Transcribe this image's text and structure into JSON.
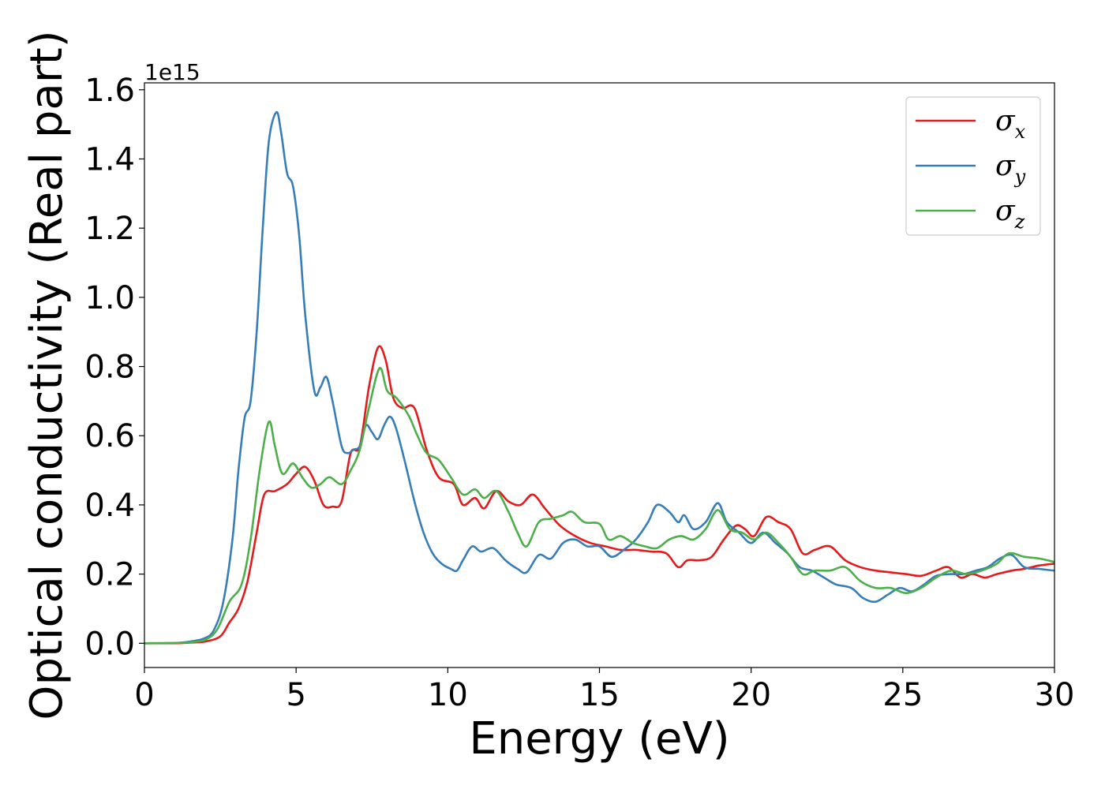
{
  "chart_data": {
    "type": "line",
    "title": "",
    "xlabel": "Energy (eV)",
    "ylabel": "Optical conductivity (Real part)",
    "y_offset_label": "1e15",
    "xlim": [
      0,
      30
    ],
    "ylim": [
      -0.07,
      1.62
    ],
    "x_ticks": [
      0,
      5,
      10,
      15,
      20,
      25,
      30
    ],
    "x_tick_labels": [
      "0",
      "5",
      "10",
      "15",
      "20",
      "25",
      "30"
    ],
    "y_ticks": [
      0.0,
      0.2,
      0.4,
      0.6,
      0.8,
      1.0,
      1.2,
      1.4,
      1.6
    ],
    "y_tick_labels": [
      "0.0",
      "0.2",
      "0.4",
      "0.6",
      "0.8",
      "1.0",
      "1.2",
      "1.4",
      "1.6"
    ],
    "grid": false,
    "legend_position": "top-right",
    "series": [
      {
        "name": "σx",
        "symbol": "σ",
        "subscript": "x",
        "color": "#e41a1c",
        "points": [
          [
            0,
            0
          ],
          [
            1,
            0
          ],
          [
            1.5,
            0.002
          ],
          [
            2,
            0.005
          ],
          [
            2.5,
            0.02
          ],
          [
            2.8,
            0.06
          ],
          [
            3.1,
            0.1
          ],
          [
            3.4,
            0.18
          ],
          [
            3.7,
            0.32
          ],
          [
            3.95,
            0.43
          ],
          [
            4.3,
            0.44
          ],
          [
            4.7,
            0.46
          ],
          [
            5,
            0.49
          ],
          [
            5.3,
            0.51
          ],
          [
            5.6,
            0.47
          ],
          [
            5.9,
            0.4
          ],
          [
            6.2,
            0.395
          ],
          [
            6.5,
            0.41
          ],
          [
            6.8,
            0.55
          ],
          [
            7.1,
            0.57
          ],
          [
            7.4,
            0.74
          ],
          [
            7.7,
            0.855
          ],
          [
            7.95,
            0.82
          ],
          [
            8.2,
            0.71
          ],
          [
            8.5,
            0.68
          ],
          [
            8.9,
            0.68
          ],
          [
            9.3,
            0.56
          ],
          [
            9.7,
            0.48
          ],
          [
            10.2,
            0.46
          ],
          [
            10.5,
            0.4
          ],
          [
            10.9,
            0.42
          ],
          [
            11.2,
            0.39
          ],
          [
            11.6,
            0.44
          ],
          [
            12,
            0.41
          ],
          [
            12.4,
            0.4
          ],
          [
            12.8,
            0.43
          ],
          [
            13.2,
            0.39
          ],
          [
            13.7,
            0.34
          ],
          [
            14.2,
            0.31
          ],
          [
            14.7,
            0.29
          ],
          [
            15.2,
            0.28
          ],
          [
            15.7,
            0.27
          ],
          [
            16.2,
            0.27
          ],
          [
            16.7,
            0.265
          ],
          [
            17.2,
            0.26
          ],
          [
            17.6,
            0.22
          ],
          [
            17.9,
            0.24
          ],
          [
            18.3,
            0.24
          ],
          [
            18.7,
            0.25
          ],
          [
            19.1,
            0.3
          ],
          [
            19.5,
            0.34
          ],
          [
            19.8,
            0.33
          ],
          [
            20.1,
            0.31
          ],
          [
            20.5,
            0.365
          ],
          [
            20.9,
            0.35
          ],
          [
            21.3,
            0.33
          ],
          [
            21.7,
            0.26
          ],
          [
            22.1,
            0.27
          ],
          [
            22.6,
            0.28
          ],
          [
            23.1,
            0.24
          ],
          [
            23.6,
            0.22
          ],
          [
            24.1,
            0.21
          ],
          [
            24.6,
            0.205
          ],
          [
            25.1,
            0.2
          ],
          [
            25.6,
            0.195
          ],
          [
            26.1,
            0.21
          ],
          [
            26.5,
            0.22
          ],
          [
            26.9,
            0.19
          ],
          [
            27.3,
            0.2
          ],
          [
            27.7,
            0.19
          ],
          [
            28.1,
            0.2
          ],
          [
            28.6,
            0.21
          ],
          [
            29,
            0.215
          ],
          [
            29.5,
            0.225
          ],
          [
            30,
            0.23
          ]
        ]
      },
      {
        "name": "σy",
        "symbol": "σ",
        "subscript": "y",
        "color": "#377eb8",
        "points": [
          [
            0,
            0
          ],
          [
            1,
            0.001
          ],
          [
            1.5,
            0.005
          ],
          [
            2,
            0.015
          ],
          [
            2.3,
            0.04
          ],
          [
            2.6,
            0.12
          ],
          [
            2.9,
            0.3
          ],
          [
            3.1,
            0.5
          ],
          [
            3.3,
            0.65
          ],
          [
            3.5,
            0.7
          ],
          [
            3.7,
            0.9
          ],
          [
            3.9,
            1.2
          ],
          [
            4.1,
            1.45
          ],
          [
            4.35,
            1.535
          ],
          [
            4.5,
            1.48
          ],
          [
            4.7,
            1.36
          ],
          [
            4.9,
            1.32
          ],
          [
            5.1,
            1.18
          ],
          [
            5.3,
            0.95
          ],
          [
            5.6,
            0.73
          ],
          [
            5.8,
            0.74
          ],
          [
            6,
            0.77
          ],
          [
            6.2,
            0.7
          ],
          [
            6.5,
            0.57
          ],
          [
            6.7,
            0.55
          ],
          [
            6.9,
            0.56
          ],
          [
            7.1,
            0.57
          ],
          [
            7.3,
            0.63
          ],
          [
            7.5,
            0.61
          ],
          [
            7.7,
            0.59
          ],
          [
            7.9,
            0.63
          ],
          [
            8.1,
            0.655
          ],
          [
            8.3,
            0.62
          ],
          [
            8.6,
            0.52
          ],
          [
            8.9,
            0.41
          ],
          [
            9.2,
            0.32
          ],
          [
            9.5,
            0.26
          ],
          [
            9.8,
            0.23
          ],
          [
            10.1,
            0.215
          ],
          [
            10.3,
            0.21
          ],
          [
            10.5,
            0.24
          ],
          [
            10.8,
            0.28
          ],
          [
            11.1,
            0.265
          ],
          [
            11.5,
            0.275
          ],
          [
            11.9,
            0.24
          ],
          [
            12.3,
            0.215
          ],
          [
            12.6,
            0.205
          ],
          [
            13,
            0.255
          ],
          [
            13.4,
            0.245
          ],
          [
            13.8,
            0.29
          ],
          [
            14.2,
            0.3
          ],
          [
            14.6,
            0.28
          ],
          [
            15,
            0.28
          ],
          [
            15.4,
            0.25
          ],
          [
            15.8,
            0.27
          ],
          [
            16.2,
            0.3
          ],
          [
            16.6,
            0.35
          ],
          [
            16.9,
            0.4
          ],
          [
            17.3,
            0.38
          ],
          [
            17.6,
            0.35
          ],
          [
            17.8,
            0.37
          ],
          [
            18.1,
            0.33
          ],
          [
            18.5,
            0.35
          ],
          [
            18.9,
            0.405
          ],
          [
            19.2,
            0.35
          ],
          [
            19.6,
            0.32
          ],
          [
            20,
            0.29
          ],
          [
            20.4,
            0.32
          ],
          [
            20.8,
            0.29
          ],
          [
            21.2,
            0.26
          ],
          [
            21.6,
            0.22
          ],
          [
            22,
            0.21
          ],
          [
            22.4,
            0.19
          ],
          [
            22.8,
            0.17
          ],
          [
            23.3,
            0.16
          ],
          [
            23.7,
            0.13
          ],
          [
            24.1,
            0.12
          ],
          [
            24.5,
            0.14
          ],
          [
            24.9,
            0.16
          ],
          [
            25.3,
            0.15
          ],
          [
            25.7,
            0.17
          ],
          [
            26.1,
            0.195
          ],
          [
            26.6,
            0.2
          ],
          [
            27,
            0.2
          ],
          [
            27.4,
            0.21
          ],
          [
            27.8,
            0.22
          ],
          [
            28.2,
            0.245
          ],
          [
            28.6,
            0.255
          ],
          [
            29,
            0.22
          ],
          [
            29.5,
            0.215
          ],
          [
            30,
            0.21
          ]
        ]
      },
      {
        "name": "σz",
        "symbol": "σ",
        "subscript": "z",
        "color": "#4daf4a",
        "points": [
          [
            0,
            0
          ],
          [
            1,
            0.001
          ],
          [
            1.5,
            0.003
          ],
          [
            2,
            0.01
          ],
          [
            2.4,
            0.04
          ],
          [
            2.8,
            0.12
          ],
          [
            3.2,
            0.17
          ],
          [
            3.5,
            0.3
          ],
          [
            3.8,
            0.5
          ],
          [
            4.1,
            0.64
          ],
          [
            4.3,
            0.57
          ],
          [
            4.55,
            0.49
          ],
          [
            4.9,
            0.52
          ],
          [
            5.2,
            0.48
          ],
          [
            5.5,
            0.45
          ],
          [
            5.8,
            0.46
          ],
          [
            6.1,
            0.48
          ],
          [
            6.5,
            0.46
          ],
          [
            6.8,
            0.5
          ],
          [
            7.1,
            0.56
          ],
          [
            7.4,
            0.68
          ],
          [
            7.75,
            0.795
          ],
          [
            8,
            0.73
          ],
          [
            8.3,
            0.71
          ],
          [
            8.7,
            0.66
          ],
          [
            9,
            0.6
          ],
          [
            9.3,
            0.55
          ],
          [
            9.7,
            0.53
          ],
          [
            10.1,
            0.48
          ],
          [
            10.5,
            0.43
          ],
          [
            10.9,
            0.445
          ],
          [
            11.2,
            0.42
          ],
          [
            11.6,
            0.44
          ],
          [
            12,
            0.38
          ],
          [
            12.3,
            0.32
          ],
          [
            12.6,
            0.28
          ],
          [
            13,
            0.35
          ],
          [
            13.4,
            0.36
          ],
          [
            13.8,
            0.37
          ],
          [
            14.1,
            0.38
          ],
          [
            14.5,
            0.35
          ],
          [
            15,
            0.345
          ],
          [
            15.3,
            0.3
          ],
          [
            15.7,
            0.31
          ],
          [
            16.1,
            0.29
          ],
          [
            16.5,
            0.28
          ],
          [
            16.9,
            0.275
          ],
          [
            17.3,
            0.3
          ],
          [
            17.7,
            0.31
          ],
          [
            18.1,
            0.3
          ],
          [
            18.5,
            0.33
          ],
          [
            18.9,
            0.385
          ],
          [
            19.3,
            0.33
          ],
          [
            19.7,
            0.32
          ],
          [
            20.1,
            0.3
          ],
          [
            20.5,
            0.32
          ],
          [
            20.9,
            0.29
          ],
          [
            21.3,
            0.25
          ],
          [
            21.7,
            0.2
          ],
          [
            22.1,
            0.21
          ],
          [
            22.6,
            0.21
          ],
          [
            23.1,
            0.22
          ],
          [
            23.6,
            0.18
          ],
          [
            24.1,
            0.16
          ],
          [
            24.6,
            0.16
          ],
          [
            25.1,
            0.145
          ],
          [
            25.6,
            0.16
          ],
          [
            26.1,
            0.19
          ],
          [
            26.6,
            0.21
          ],
          [
            27.1,
            0.2
          ],
          [
            27.6,
            0.21
          ],
          [
            28.1,
            0.23
          ],
          [
            28.5,
            0.26
          ],
          [
            29,
            0.25
          ],
          [
            29.5,
            0.245
          ],
          [
            30,
            0.235
          ]
        ]
      }
    ]
  }
}
